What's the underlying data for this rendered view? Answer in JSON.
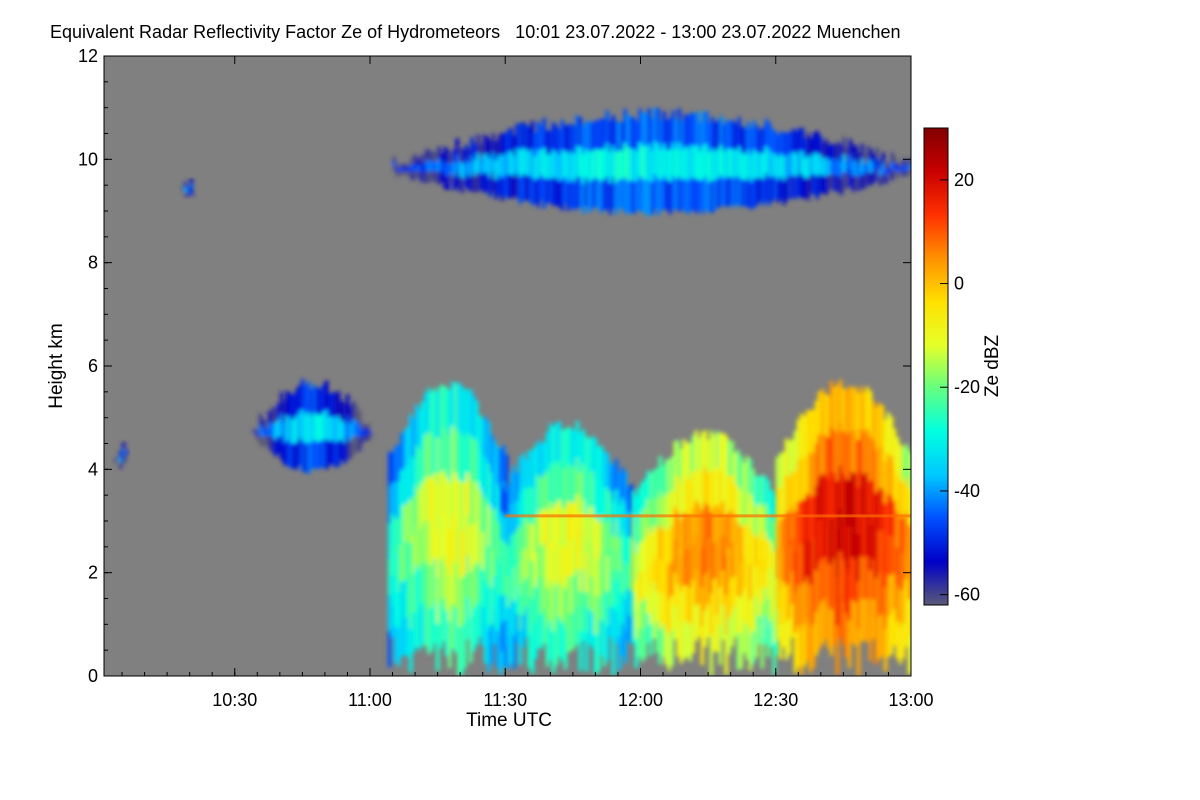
{
  "chart_data": {
    "type": "heatmap",
    "title": "Equivalent Radar Reflectivity Factor Ze of Hydrometeors   10:01 23.07.2022 - 13:00 23.07.2022 Muenchen",
    "xlabel": "Time UTC",
    "ylabel": "Height km",
    "xlim": [
      "10:01",
      "13:00"
    ],
    "ylim": [
      0,
      12
    ],
    "x_ticks": [
      "10:30",
      "11:00",
      "11:30",
      "12:00",
      "12:30",
      "13:00"
    ],
    "y_ticks": [
      0,
      2,
      4,
      6,
      8,
      10,
      12
    ],
    "background_color": "#808080",
    "colorbar": {
      "label": "Ze dBZ",
      "range": [
        -62,
        30
      ],
      "ticks": [
        -60,
        -40,
        -20,
        0,
        20
      ],
      "colormap": [
        "#5a5a78",
        "#0000c8",
        "#0050ff",
        "#00c8ff",
        "#00ffe0",
        "#64ff80",
        "#e6ff28",
        "#ffe000",
        "#ff9000",
        "#ff3000",
        "#c80000",
        "#820000"
      ]
    },
    "echo_regions": [
      {
        "name": "cirrus-layer",
        "t_start": "11:05",
        "t_end": "13:00",
        "h_bottom": 8.9,
        "h_top": 11.0,
        "ze_peak": -25
      },
      {
        "name": "upper-cells",
        "t_start": "10:34",
        "t_end": "11:00",
        "h_bottom": 3.9,
        "h_top": 5.8,
        "ze_peak": -28
      },
      {
        "name": "small-cloud-left",
        "t_start": "10:03",
        "t_end": "10:06",
        "h_bottom": 4.0,
        "h_top": 4.6,
        "ze_peak": -35
      },
      {
        "name": "small-cloud-upper-left",
        "t_start": "10:18",
        "t_end": "10:21",
        "h_bottom": 9.2,
        "h_top": 9.7,
        "ze_peak": -32
      },
      {
        "name": "precip-1",
        "t_start": "11:04",
        "t_end": "11:30",
        "h_bottom": 0.0,
        "h_top": 5.8,
        "ze_peak": -5
      },
      {
        "name": "precip-2",
        "t_start": "11:29",
        "t_end": "11:58",
        "h_bottom": 0.0,
        "h_top": 5.0,
        "ze_peak": -5
      },
      {
        "name": "precip-3",
        "t_start": "11:58",
        "t_end": "12:30",
        "h_bottom": 0.0,
        "h_top": 4.8,
        "ze_peak": 10
      },
      {
        "name": "precip-4",
        "t_start": "12:30",
        "t_end": "13:00",
        "h_bottom": 0.0,
        "h_top": 5.8,
        "ze_peak": 25
      }
    ],
    "bright_band_height_km": 3.1
  }
}
